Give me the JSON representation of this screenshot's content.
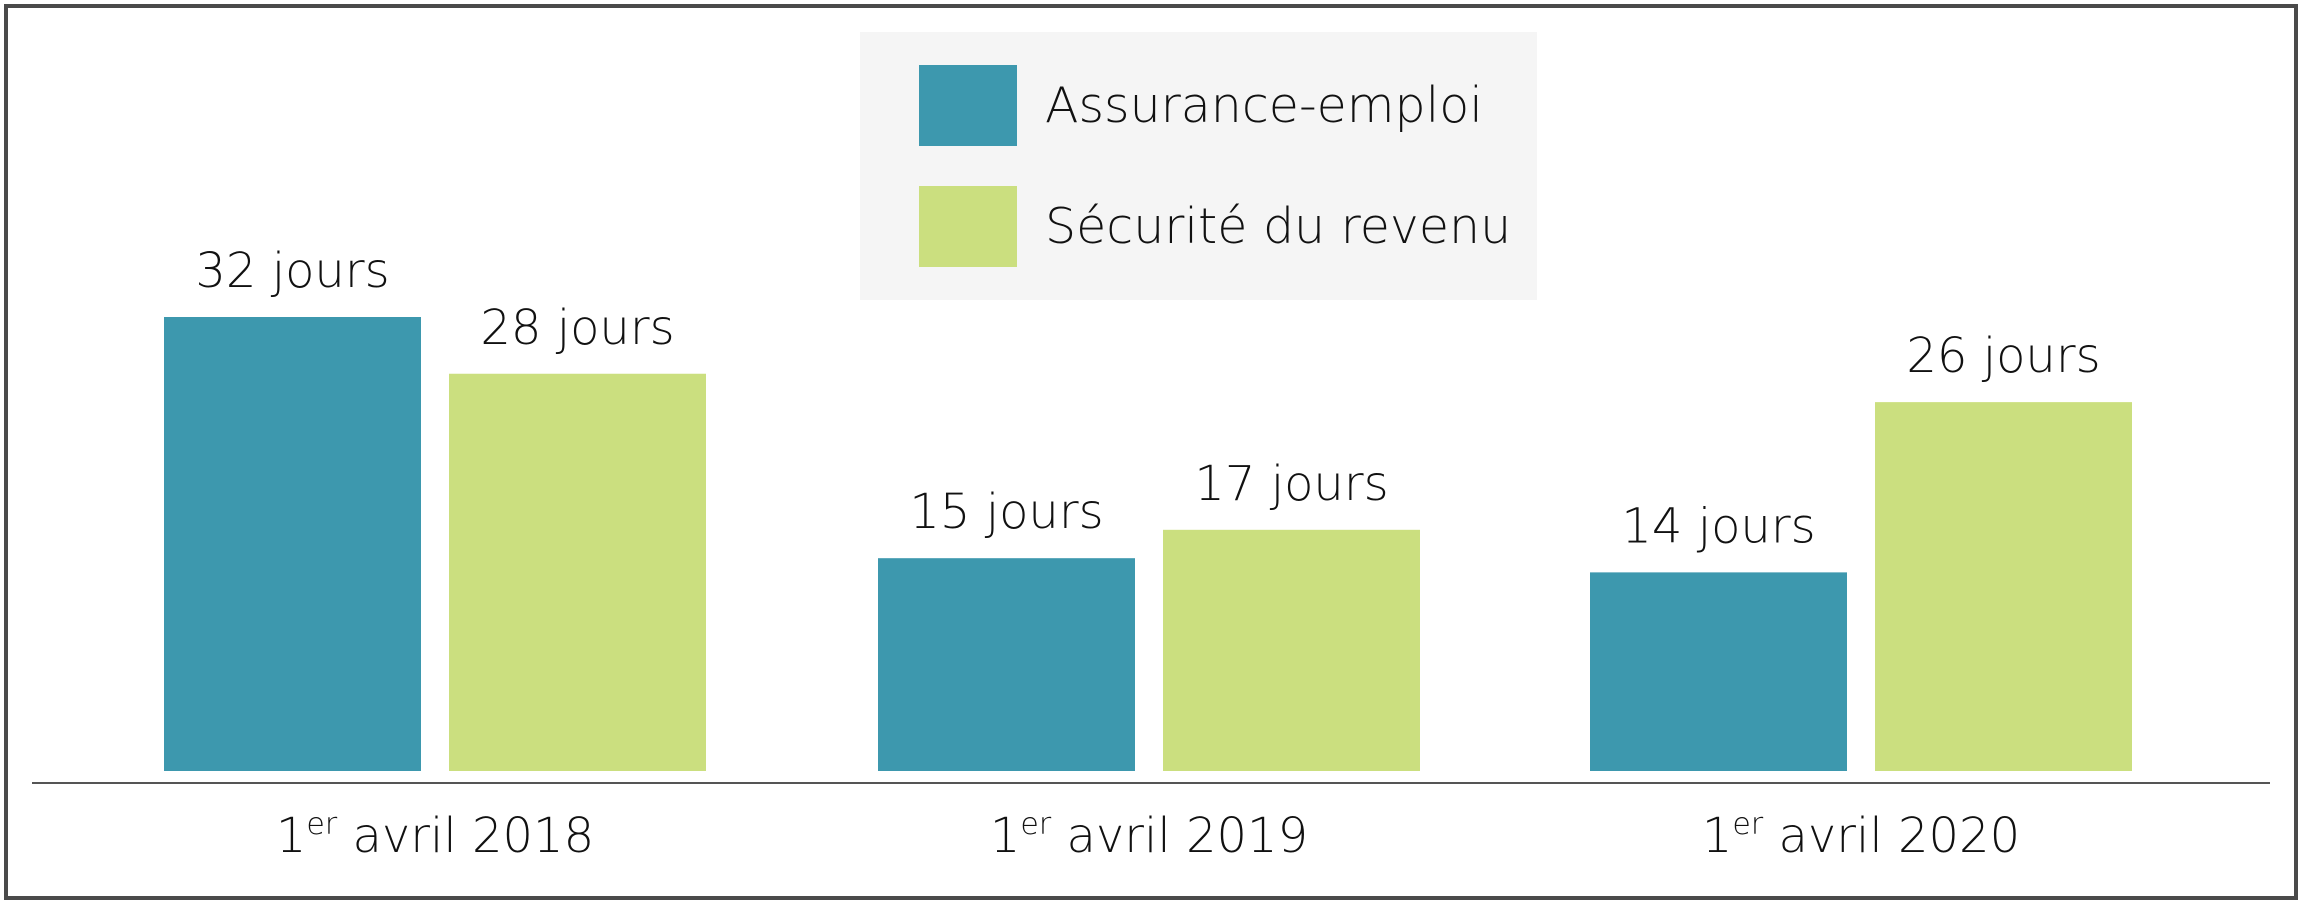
{
  "chart_data": {
    "type": "bar",
    "title": "",
    "xlabel": "",
    "ylabel": "",
    "ylim": [
      0,
      32
    ],
    "grid": false,
    "legend_placement": "top-center",
    "unit": "jours",
    "categories": [
      {
        "prefix": "1",
        "sup": "er",
        "rest": " avril 2018"
      },
      {
        "prefix": "1",
        "sup": "er",
        "rest": " avril 2019"
      },
      {
        "prefix": "1",
        "sup": "er",
        "rest": " avril 2020"
      }
    ],
    "series": [
      {
        "name": "Assurance-emploi",
        "color": "#3d98ae",
        "values": [
          32,
          15,
          14
        ],
        "labels": [
          "32 jours",
          "15 jours",
          "14 jours"
        ]
      },
      {
        "name": "Sécurité du revenu",
        "color": "#cbdf7f",
        "values": [
          28,
          17,
          26
        ],
        "labels": [
          "28 jours",
          "17 jours",
          "26 jours"
        ]
      }
    ]
  },
  "colors": {
    "frame": "#4a4a4a",
    "legend_bg": "#f5f5f5",
    "axis": "#555555"
  }
}
